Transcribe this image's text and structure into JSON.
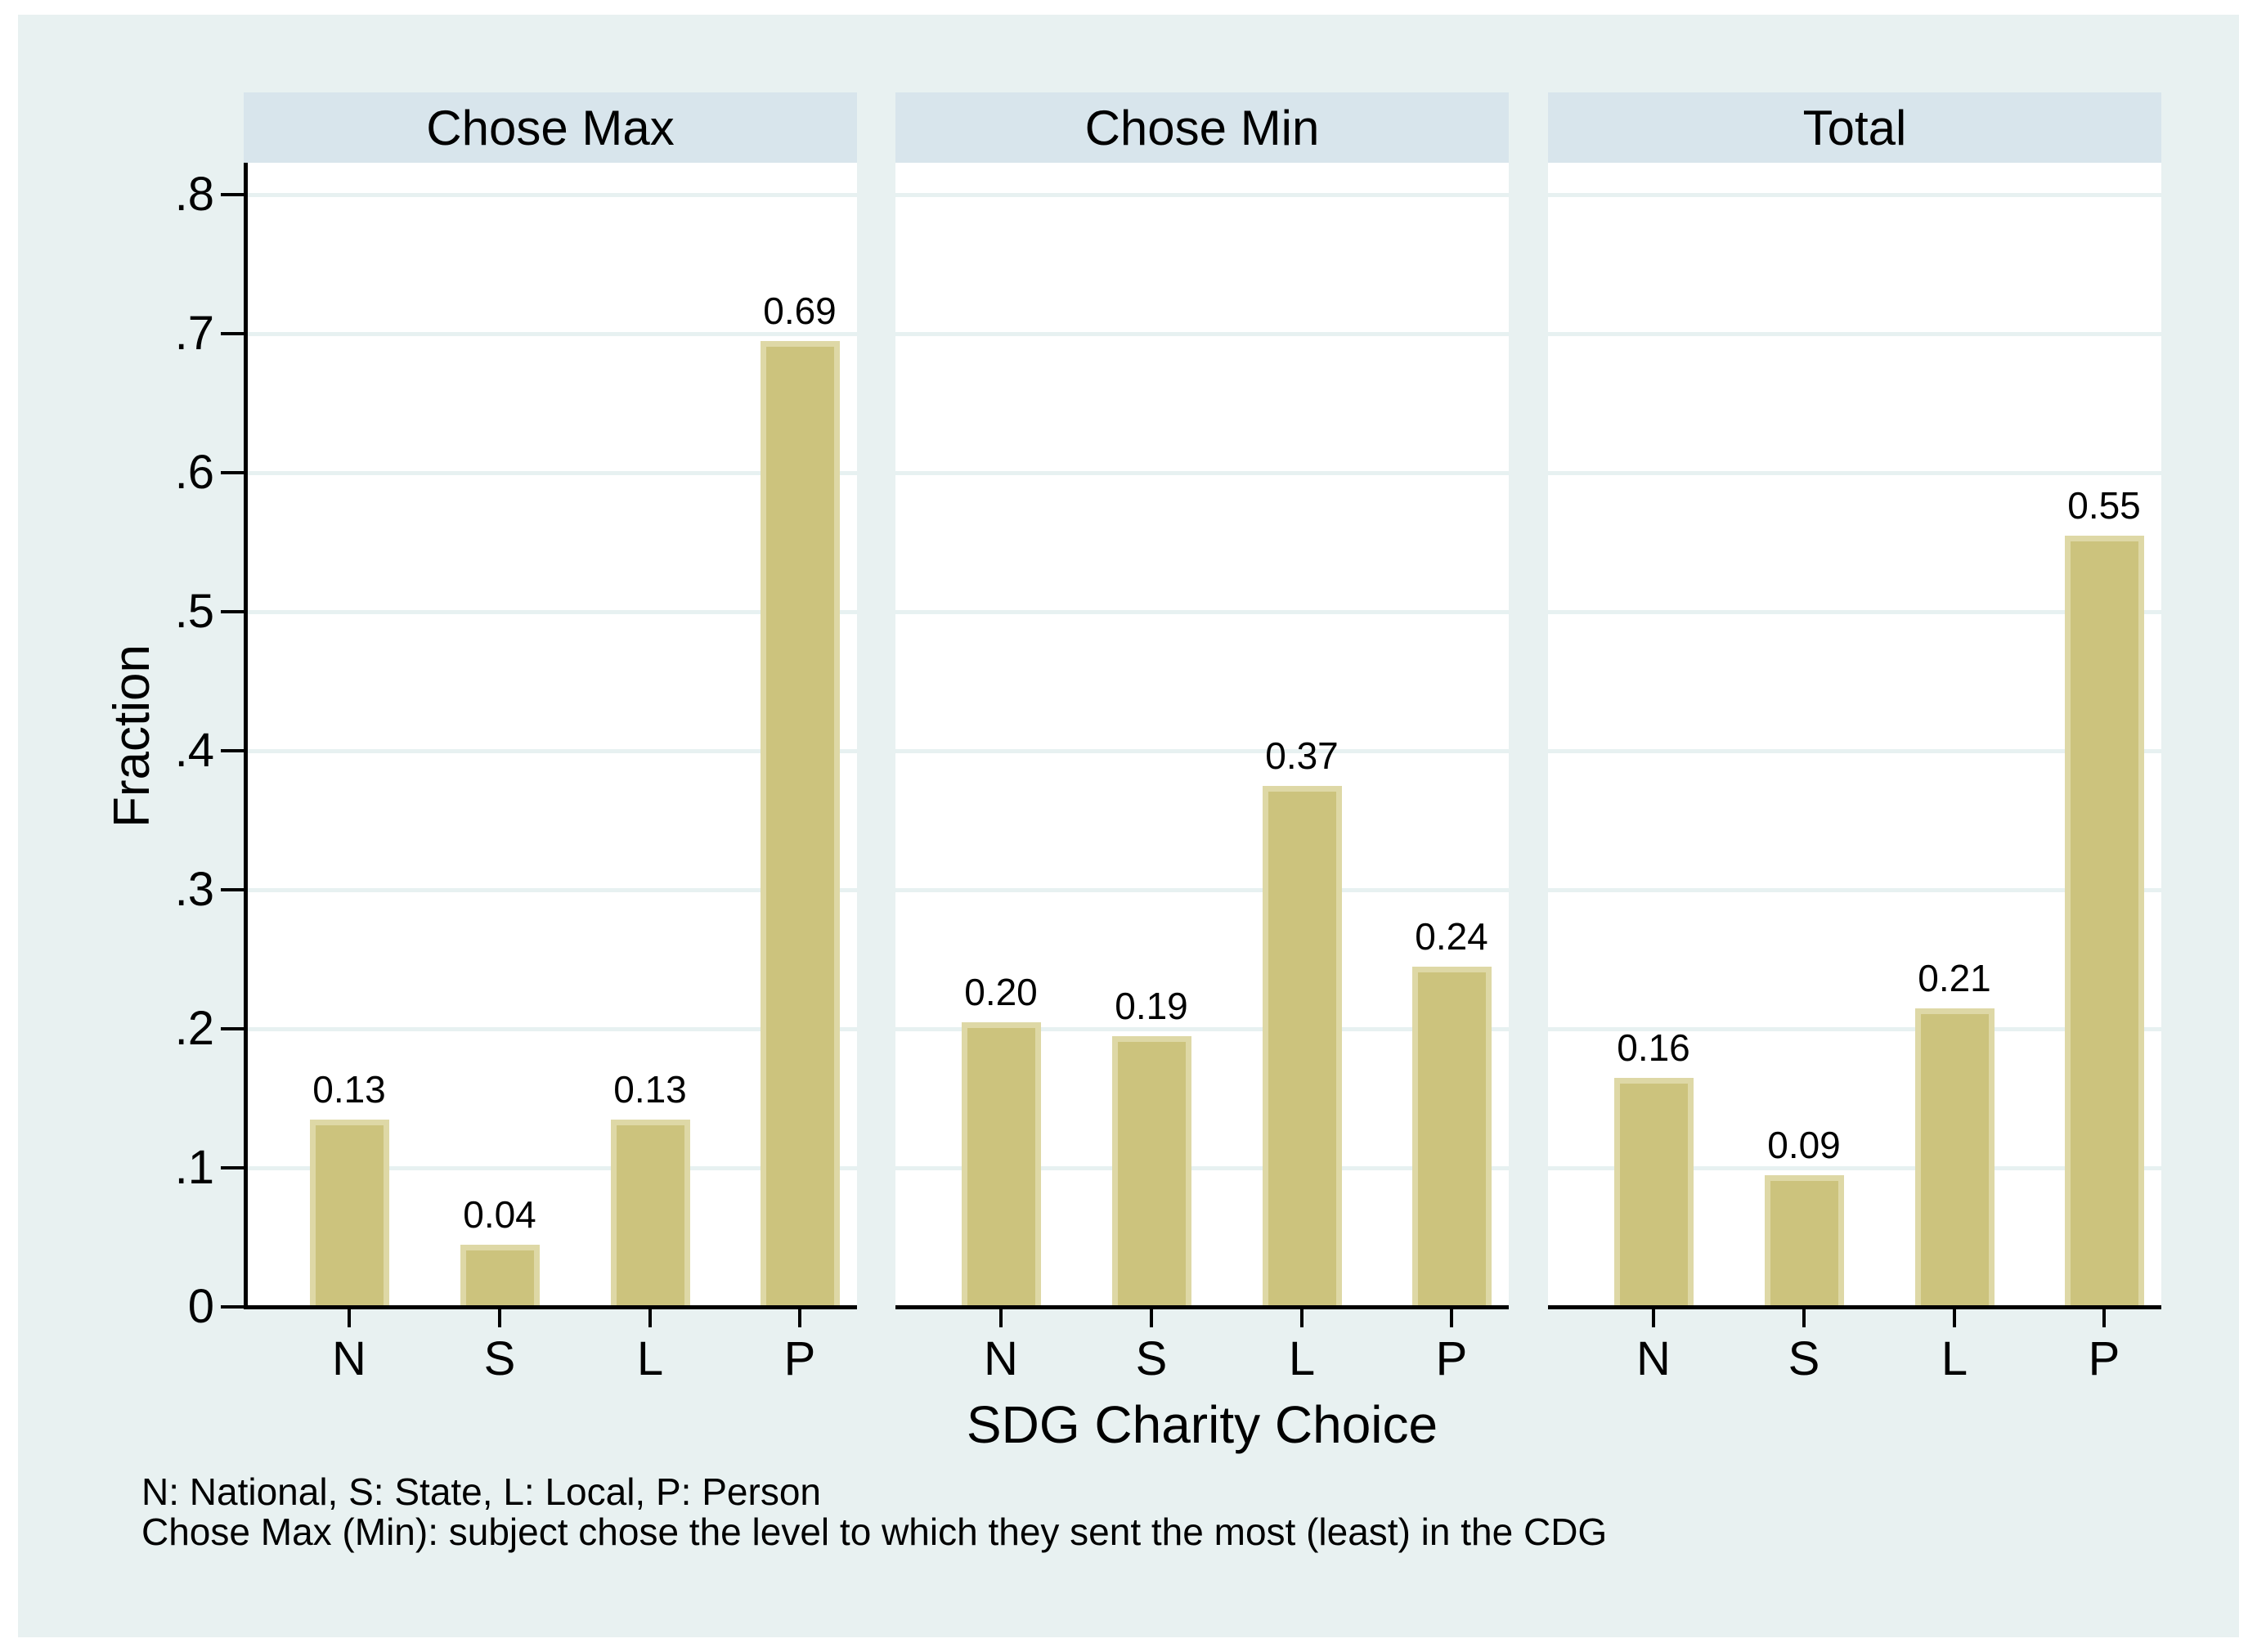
{
  "figure": {
    "y_axis_title": "Fraction",
    "x_axis_title": "SDG Charity Choice",
    "notes": [
      "N: National, S: State, L: Local, P: Person",
      "Chose Max (Min): subject chose the level to which they sent the most (least) in the CDG"
    ]
  },
  "chart_data": {
    "type": "bar",
    "categories": [
      "N",
      "S",
      "L",
      "P"
    ],
    "series": [
      {
        "name": "Chose Max",
        "values": [
          0.13,
          0.04,
          0.13,
          0.69
        ],
        "labels": [
          "0.13",
          "0.04",
          "0.13",
          "0.69"
        ]
      },
      {
        "name": "Chose Min",
        "values": [
          0.2,
          0.19,
          0.37,
          0.24
        ],
        "labels": [
          "0.20",
          "0.19",
          "0.37",
          "0.24"
        ]
      },
      {
        "name": "Total",
        "values": [
          0.16,
          0.09,
          0.21,
          0.55
        ],
        "labels": [
          "0.16",
          "0.09",
          "0.21",
          "0.55"
        ]
      }
    ],
    "title": "",
    "xlabel": "SDG Charity Choice",
    "ylabel": "Fraction",
    "ylim": [
      0,
      0.8
    ],
    "ytick_labels": [
      "0",
      ".1",
      ".2",
      ".3",
      ".4",
      ".5",
      ".6",
      ".7",
      ".8"
    ],
    "grid": true,
    "legend": "none",
    "colors": {
      "figure_background": "#e8f1f1",
      "panel_header_background": "#d8e5ec",
      "plot_background": "#ffffff",
      "gridline": "#e7f1f1",
      "bar_fill": "#ccc37d",
      "bar_border": "#ded8a6",
      "axis": "#000000",
      "text": "#000000"
    }
  }
}
